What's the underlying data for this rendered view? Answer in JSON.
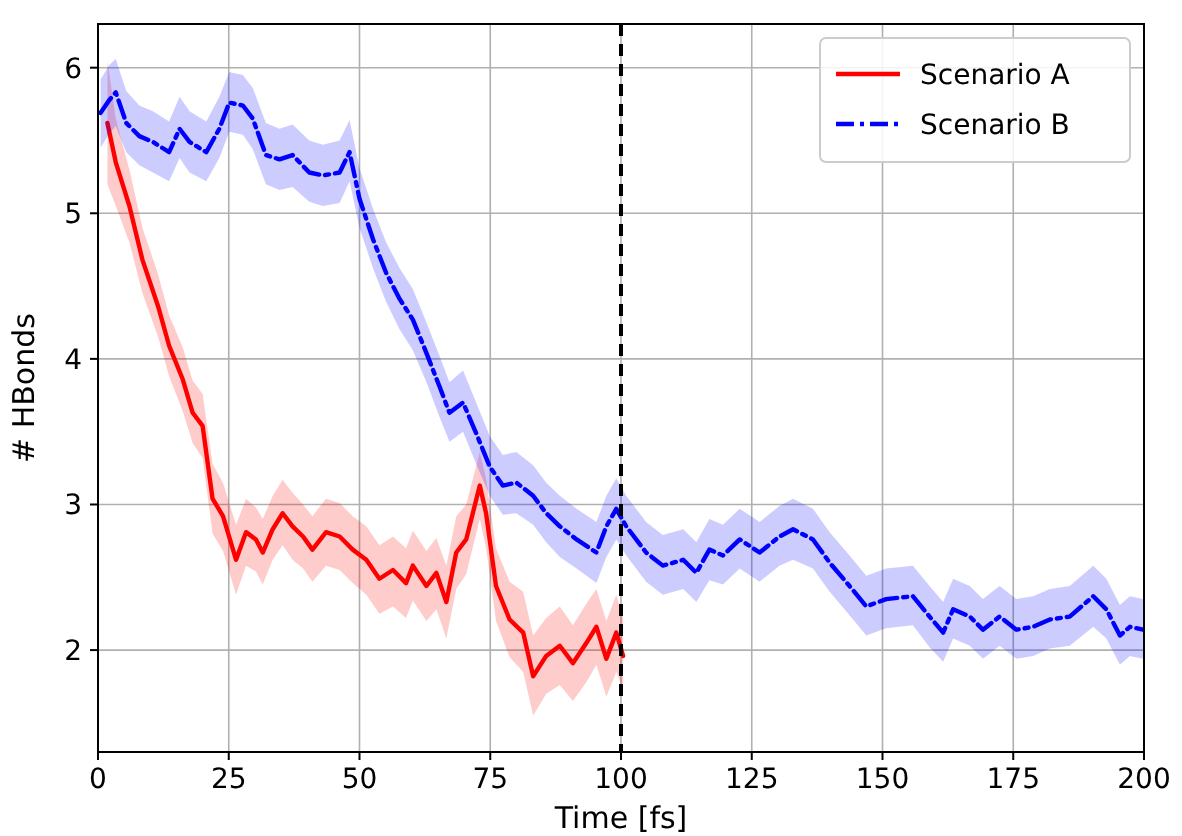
{
  "chart_data": {
    "type": "line",
    "xlabel": "Time [fs]",
    "ylabel": "# HBonds",
    "xlim": [
      0,
      200
    ],
    "ylim": [
      1.3,
      6.3
    ],
    "xticks": [
      0,
      25,
      50,
      75,
      100,
      125,
      150,
      175,
      200
    ],
    "yticks": [
      2,
      3,
      4,
      5,
      6
    ],
    "grid": true,
    "legend": "top right",
    "ref_lines": [
      {
        "axis": "x",
        "value": 100,
        "color": "#000000",
        "line_style": "dashed"
      }
    ],
    "series": [
      {
        "name": "Scenario A",
        "color": "#ff0000",
        "line_style": "solid",
        "x": [
          1.8,
          3.4,
          6,
          8.5,
          11.5,
          13.6,
          16.2,
          18.1,
          20,
          21.9,
          23.9,
          26.4,
          28.3,
          30.2,
          31.5,
          33.4,
          35.3,
          37.2,
          39.2,
          41,
          43.6,
          46.2,
          48.7,
          51.3,
          53.8,
          56.4,
          58.9,
          60.2,
          62.8,
          64.7,
          66.6,
          68.5,
          70.4,
          73,
          74.2,
          76.1,
          78.7,
          81.3,
          83.2,
          85.7,
          88.3,
          90.8,
          93.4,
          95.3,
          97.2,
          99.1,
          100.4
        ],
        "values": [
          5.62,
          5.35,
          5.05,
          4.68,
          4.36,
          4.09,
          3.86,
          3.63,
          3.54,
          3.04,
          2.92,
          2.62,
          2.81,
          2.76,
          2.67,
          2.83,
          2.94,
          2.85,
          2.78,
          2.69,
          2.81,
          2.78,
          2.69,
          2.62,
          2.49,
          2.55,
          2.46,
          2.58,
          2.44,
          2.53,
          2.33,
          2.67,
          2.76,
          3.13,
          2.94,
          2.44,
          2.21,
          2.12,
          1.82,
          1.96,
          2.03,
          1.91,
          2.05,
          2.16,
          1.94,
          2.12,
          1.96
        ],
        "lower": [
          5.2,
          5.05,
          4.8,
          4.45,
          4.15,
          3.88,
          3.64,
          3.42,
          3.32,
          2.8,
          2.68,
          2.38,
          2.58,
          2.54,
          2.45,
          2.62,
          2.72,
          2.62,
          2.56,
          2.47,
          2.58,
          2.55,
          2.46,
          2.38,
          2.25,
          2.3,
          2.22,
          2.34,
          2.2,
          2.28,
          2.08,
          2.42,
          2.52,
          2.9,
          2.7,
          2.2,
          1.95,
          1.85,
          1.55,
          1.7,
          1.76,
          1.65,
          1.78,
          1.9,
          1.68,
          1.85,
          1.72
        ],
        "upper": [
          6.05,
          5.65,
          5.3,
          4.9,
          4.58,
          4.3,
          4.08,
          3.85,
          3.76,
          3.28,
          3.15,
          2.86,
          3.04,
          2.98,
          2.9,
          3.06,
          3.17,
          3.08,
          3.0,
          2.92,
          3.04,
          3.01,
          2.92,
          2.85,
          2.72,
          2.78,
          2.7,
          2.82,
          2.68,
          2.77,
          2.58,
          2.92,
          3.0,
          3.36,
          3.18,
          2.7,
          2.47,
          2.4,
          2.1,
          2.22,
          2.3,
          2.17,
          2.32,
          2.42,
          2.2,
          2.38,
          2.22
        ]
      },
      {
        "name": "Scenario B",
        "color": "#0000ff",
        "line_style": "dashdot",
        "x": [
          0.5,
          2.2,
          3.4,
          5.4,
          7.9,
          10.5,
          13.6,
          15.6,
          17.5,
          20.7,
          23.2,
          25.1,
          27.7,
          29.6,
          32.1,
          34.7,
          37.2,
          40.4,
          43,
          46.2,
          48.1,
          50,
          52.6,
          55.1,
          57.7,
          60.2,
          62.8,
          65.3,
          67.2,
          69.8,
          72.3,
          74.9,
          77.4,
          80,
          83.2,
          85.7,
          88.3,
          91.5,
          95.3,
          97.2,
          99.1,
          101,
          104.8,
          108,
          111.9,
          114.4,
          116.9,
          119.5,
          122.7,
          126.5,
          130.3,
          132.9,
          136.7,
          139.9,
          143.7,
          146.9,
          150.7,
          155.8,
          159,
          161.6,
          163.5,
          166.7,
          169.2,
          172.4,
          175.6,
          178.8,
          182,
          185.8,
          190.3,
          192.8,
          195.4,
          197.3,
          199.8
        ],
        "values": [
          5.69,
          5.78,
          5.83,
          5.62,
          5.53,
          5.49,
          5.42,
          5.58,
          5.49,
          5.42,
          5.58,
          5.76,
          5.74,
          5.65,
          5.4,
          5.37,
          5.4,
          5.28,
          5.26,
          5.28,
          5.42,
          5.1,
          4.82,
          4.59,
          4.41,
          4.27,
          4.04,
          3.81,
          3.63,
          3.7,
          3.49,
          3.26,
          3.13,
          3.15,
          3.06,
          2.94,
          2.85,
          2.76,
          2.67,
          2.85,
          2.97,
          2.85,
          2.67,
          2.58,
          2.62,
          2.53,
          2.69,
          2.65,
          2.76,
          2.67,
          2.78,
          2.83,
          2.76,
          2.6,
          2.44,
          2.3,
          2.35,
          2.37,
          2.23,
          2.12,
          2.28,
          2.23,
          2.14,
          2.23,
          2.14,
          2.16,
          2.21,
          2.23,
          2.37,
          2.28,
          2.1,
          2.16,
          2.14
        ],
        "lower": [
          5.45,
          5.55,
          5.6,
          5.42,
          5.33,
          5.28,
          5.22,
          5.38,
          5.28,
          5.22,
          5.38,
          5.56,
          5.54,
          5.44,
          5.2,
          5.16,
          5.18,
          5.08,
          5.05,
          5.07,
          5.22,
          4.9,
          4.62,
          4.39,
          4.2,
          4.06,
          3.84,
          3.6,
          3.43,
          3.5,
          3.28,
          3.06,
          2.93,
          2.94,
          2.86,
          2.74,
          2.64,
          2.56,
          2.46,
          2.64,
          2.76,
          2.65,
          2.47,
          2.38,
          2.42,
          2.33,
          2.48,
          2.45,
          2.56,
          2.47,
          2.58,
          2.62,
          2.56,
          2.4,
          2.24,
          2.1,
          2.15,
          2.17,
          2.02,
          1.92,
          2.08,
          2.03,
          1.94,
          2.03,
          1.94,
          1.96,
          2.01,
          2.03,
          2.16,
          2.08,
          1.9,
          1.96,
          1.94
        ],
        "upper": [
          5.92,
          6.02,
          6.06,
          5.84,
          5.74,
          5.7,
          5.63,
          5.8,
          5.7,
          5.63,
          5.8,
          5.97,
          5.95,
          5.86,
          5.62,
          5.58,
          5.61,
          5.5,
          5.47,
          5.5,
          5.64,
          5.31,
          5.03,
          4.8,
          4.62,
          4.48,
          4.25,
          4.02,
          3.84,
          3.92,
          3.7,
          3.47,
          3.34,
          3.36,
          3.27,
          3.15,
          3.06,
          2.97,
          2.88,
          3.06,
          3.18,
          3.06,
          2.88,
          2.79,
          2.83,
          2.74,
          2.9,
          2.86,
          2.97,
          2.88,
          2.99,
          3.04,
          2.97,
          2.81,
          2.65,
          2.51,
          2.56,
          2.58,
          2.44,
          2.33,
          2.49,
          2.44,
          2.35,
          2.44,
          2.35,
          2.37,
          2.42,
          2.44,
          2.58,
          2.49,
          2.31,
          2.37,
          2.35
        ]
      }
    ]
  }
}
